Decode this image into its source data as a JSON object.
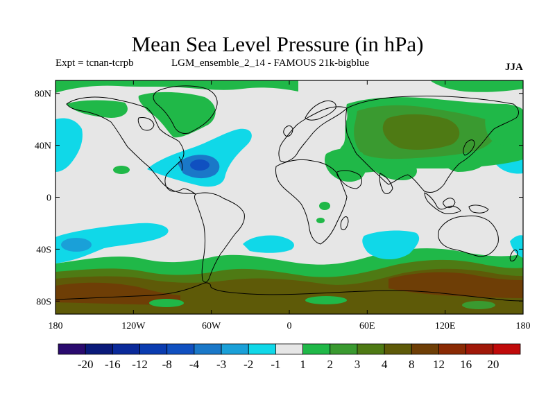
{
  "title": "Mean Sea Level Pressure (in hPa)",
  "subtitle_left": "Expt = tcnan-tcrpb",
  "subtitle_mid": "LGM_ensemble_2_14 - FAMOUS 21k-bigblue",
  "season": "JJA",
  "y_ticks": [
    {
      "label": "80N",
      "lat": 80
    },
    {
      "label": "40N",
      "lat": 40
    },
    {
      "label": "0",
      "lat": 0
    },
    {
      "label": "40S",
      "lat": -40
    },
    {
      "label": "80S",
      "lat": -80
    }
  ],
  "x_ticks": [
    {
      "label": "180",
      "lon": -180
    },
    {
      "label": "120W",
      "lon": -120
    },
    {
      "label": "60W",
      "lon": -60
    },
    {
      "label": "0",
      "lon": 0
    },
    {
      "label": "60E",
      "lon": 60
    },
    {
      "label": "120E",
      "lon": 120
    },
    {
      "label": "180",
      "lon": 180
    }
  ],
  "colorbar": {
    "colors": [
      "#2a0a6e",
      "#0a1a7a",
      "#0a2a9a",
      "#0a3cb0",
      "#1050c0",
      "#1a78c8",
      "#1aa0d8",
      "#10d8e8",
      "#e6e6e6",
      "#20b848",
      "#3a9a30",
      "#4e7a14",
      "#5e5a08",
      "#6e3e06",
      "#8a2a04",
      "#a01808",
      "#c00a0a"
    ],
    "labels": [
      "-20",
      "-16",
      "-12",
      "-8",
      "-4",
      "-3",
      "-2",
      "-1",
      "1",
      "2",
      "3",
      "4",
      "8",
      "12",
      "16",
      "20"
    ]
  },
  "colors": {
    "bg": "#e6e6e6",
    "cyan": "#10d8e8",
    "lightblue": "#1aa0d8",
    "blue": "#1a78c8",
    "green": "#20b848",
    "midgreen": "#3a9a30",
    "olive": "#4e7a14",
    "brown": "#5e5a08",
    "darkbrown": "#6e3e06"
  }
}
